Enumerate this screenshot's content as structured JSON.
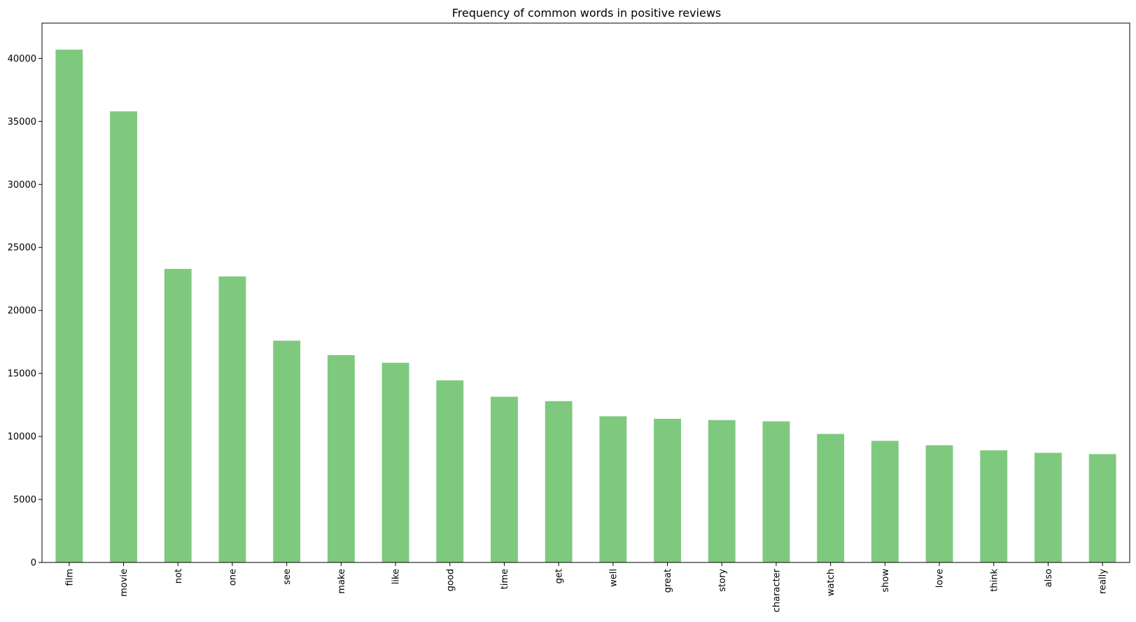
{
  "chart_data": {
    "type": "bar",
    "title": "Frequency of common words in positive reviews",
    "xlabel": "",
    "ylabel": "",
    "categories": [
      "film",
      "movie",
      "not",
      "one",
      "see",
      "make",
      "like",
      "good",
      "time",
      "get",
      "well",
      "great",
      "story",
      "character",
      "watch",
      "show",
      "love",
      "think",
      "also",
      "really"
    ],
    "values": [
      40700,
      35800,
      23300,
      22700,
      17600,
      16450,
      15850,
      14450,
      13150,
      12800,
      11600,
      11400,
      11300,
      11200,
      10200,
      9650,
      9300,
      8900,
      8700,
      8600
    ],
    "ylim": [
      0,
      42800
    ],
    "yticks": [
      0,
      5000,
      10000,
      15000,
      20000,
      25000,
      30000,
      35000,
      40000
    ],
    "bar_color": "#7fc97f",
    "grid": false,
    "legend": "none"
  }
}
